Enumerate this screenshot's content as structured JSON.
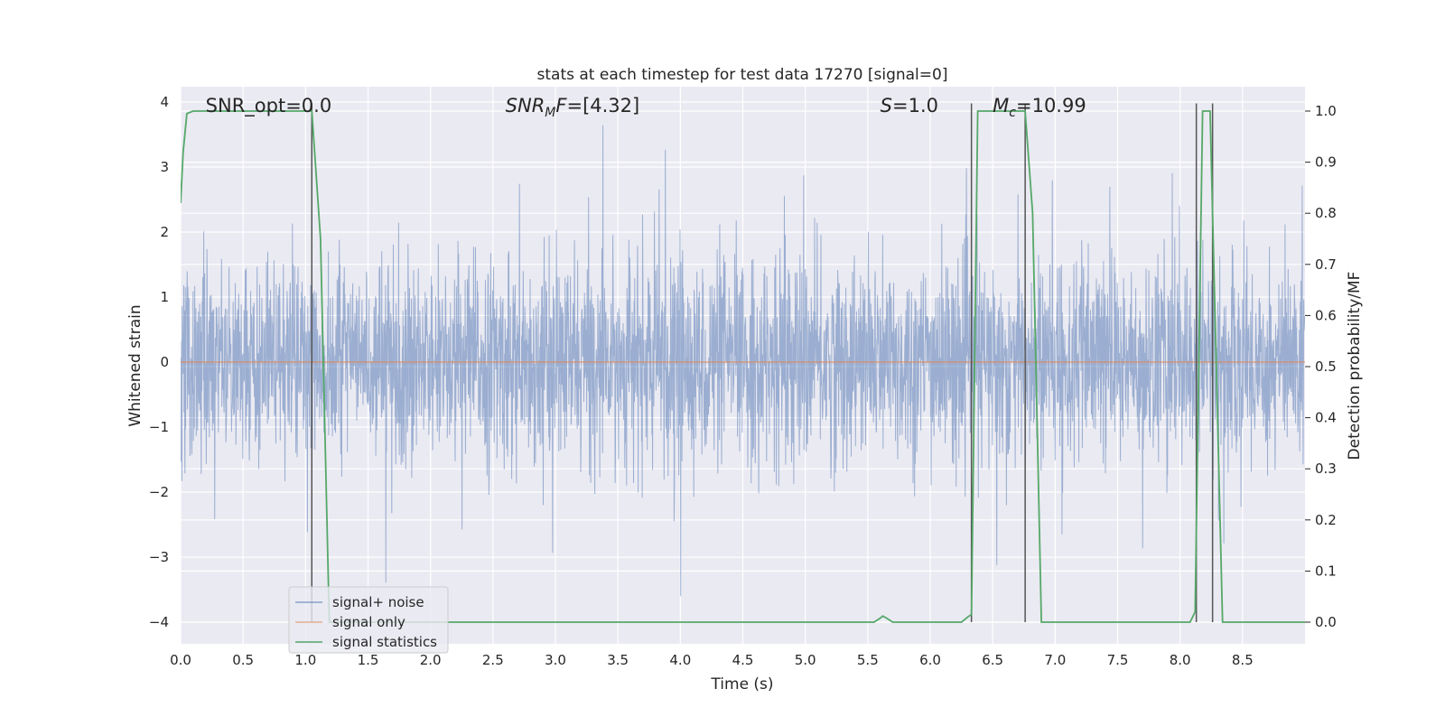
{
  "chart_data": {
    "type": "line",
    "title": "stats at each timestep for test data 17270 [signal=0]",
    "xlabel": "Time (s)",
    "ylabel": "Whitened strain",
    "ylabel_right": "Detection probability/MF",
    "xlim": [
      0.0,
      9.0
    ],
    "ylim": [
      -4.4,
      4.2
    ],
    "ylim_right": [
      -0.05,
      1.05
    ],
    "xticks": [
      "0.0",
      "0.5",
      "1.0",
      "1.5",
      "2.0",
      "2.5",
      "3.0",
      "3.5",
      "4.0",
      "4.5",
      "5.0",
      "5.5",
      "6.0",
      "6.5",
      "7.0",
      "7.5",
      "8.0",
      "8.5"
    ],
    "yticks": [
      "4",
      "3",
      "2",
      "1",
      "0",
      "−1",
      "−2",
      "−3",
      "−4"
    ],
    "yticks_right": [
      "1.0",
      "0.9",
      "0.8",
      "0.7",
      "0.6",
      "0.5",
      "0.4",
      "0.3",
      "0.2",
      "0.1",
      "0.0"
    ],
    "grid": true,
    "legend_position": "lower-left",
    "annotations": [
      {
        "html": "SNR_opt=0.0",
        "x": 0.2
      },
      {
        "html": "<tspan font-style='italic'>SNR</tspan><tspan font-style='italic' font-size='14' dy='5'>M</tspan><tspan font-style='italic' dy='-5'>F</tspan>=[4.32]",
        "x": 2.6
      },
      {
        "html": "<tspan font-style='italic'>S</tspan>=1.0",
        "x": 5.6
      },
      {
        "html": "<tspan font-style='italic'>M</tspan><tspan font-style='italic' font-size='14' dy='5'>c</tspan><tspan dy='-5'>=10.99</tspan>",
        "x": 6.5
      }
    ],
    "vlines": [
      1.05,
      6.33,
      6.76,
      8.13,
      8.26
    ],
    "series": [
      {
        "name": "signal+ noise",
        "color": "#4c72b0",
        "style": "dense-noise",
        "dt": 0.0025,
        "sigma": 0.78,
        "peak_max": [
          3.8,
          3.4,
          3.0
        ],
        "peak_min": [
          -3.6,
          -3.3,
          -2.9
        ]
      },
      {
        "name": "signal only",
        "color": "#dd8452",
        "x": [
          0.0,
          9.0
        ],
        "y": [
          0.0,
          0.0
        ]
      },
      {
        "name": "signal statistics",
        "color": "#55a868",
        "axis": "right",
        "x": [
          0.0,
          0.02,
          0.05,
          0.1,
          0.15,
          0.9,
          1.0,
          1.05,
          1.12,
          1.19,
          1.25,
          1.3,
          5.5,
          5.55,
          5.6,
          5.62,
          5.65,
          5.7,
          6.25,
          6.3,
          6.33,
          6.38,
          6.5,
          6.76,
          6.82,
          6.89,
          6.95,
          8.08,
          8.12,
          8.18,
          8.24,
          8.27,
          8.34,
          8.4,
          9.0
        ],
        "y": [
          0.82,
          0.92,
          0.995,
          1.0,
          1.0,
          1.0,
          1.0,
          1.0,
          0.75,
          0.0,
          0.0,
          0.0,
          0.0,
          0.0,
          0.008,
          0.012,
          0.008,
          0.0,
          0.0,
          0.01,
          0.015,
          1.0,
          1.0,
          1.0,
          0.8,
          0.0,
          0.0,
          0.0,
          0.02,
          1.0,
          1.0,
          0.7,
          0.0,
          0.0,
          0.0
        ]
      }
    ]
  }
}
